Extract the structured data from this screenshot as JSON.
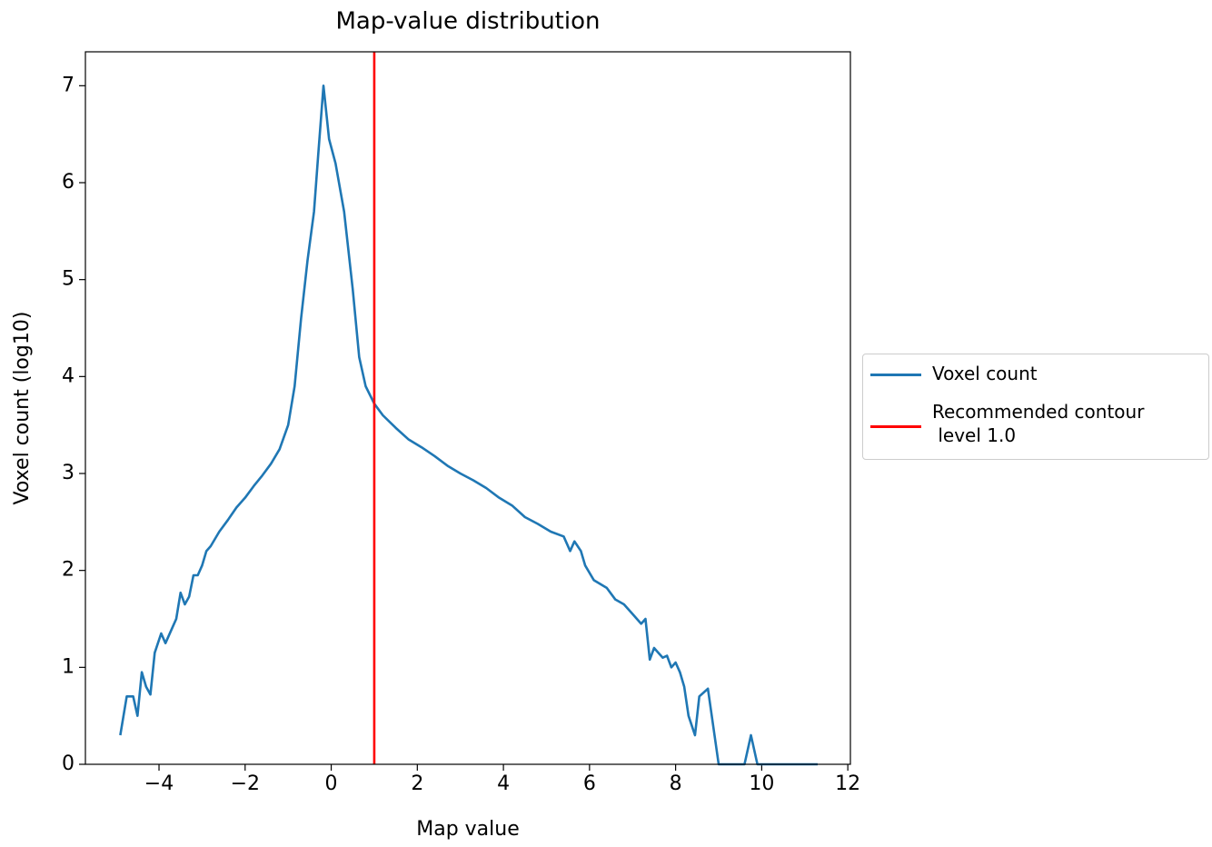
{
  "chart_data": {
    "type": "line",
    "title": "Map-value distribution",
    "xlabel": "Map value",
    "ylabel": "Voxel count (log10)",
    "series": [
      {
        "name": "Voxel count",
        "color": "#1f77b4",
        "x": [
          -4.9,
          -4.75,
          -4.6,
          -4.5,
          -4.4,
          -4.3,
          -4.2,
          -4.1,
          -3.95,
          -3.85,
          -3.7,
          -3.6,
          -3.5,
          -3.4,
          -3.3,
          -3.2,
          -3.1,
          -3.0,
          -2.9,
          -2.8,
          -2.6,
          -2.4,
          -2.2,
          -2.0,
          -1.8,
          -1.6,
          -1.4,
          -1.2,
          -1.0,
          -0.85,
          -0.7,
          -0.55,
          -0.4,
          -0.3,
          -0.18,
          -0.05,
          0.1,
          0.3,
          0.5,
          0.65,
          0.8,
          1.0,
          1.2,
          1.5,
          1.8,
          2.1,
          2.4,
          2.7,
          3.0,
          3.3,
          3.6,
          3.9,
          4.2,
          4.5,
          4.8,
          5.1,
          5.4,
          5.55,
          5.65,
          5.8,
          5.9,
          6.1,
          6.4,
          6.6,
          6.8,
          7.0,
          7.2,
          7.3,
          7.4,
          7.5,
          7.6,
          7.7,
          7.8,
          7.9,
          8.0,
          8.1,
          8.2,
          8.3,
          8.45,
          8.55,
          8.75,
          9.0,
          9.6,
          9.75,
          9.9,
          11.3
        ],
        "values": [
          0.3,
          0.7,
          0.7,
          0.5,
          0.95,
          0.8,
          0.72,
          1.15,
          1.35,
          1.25,
          1.4,
          1.5,
          1.77,
          1.65,
          1.73,
          1.95,
          1.95,
          2.05,
          2.2,
          2.25,
          2.4,
          2.52,
          2.65,
          2.75,
          2.87,
          2.98,
          3.1,
          3.25,
          3.5,
          3.9,
          4.6,
          5.2,
          5.7,
          6.3,
          7.0,
          6.45,
          6.2,
          5.7,
          4.9,
          4.2,
          3.9,
          3.72,
          3.6,
          3.47,
          3.35,
          3.27,
          3.18,
          3.08,
          3.0,
          2.93,
          2.85,
          2.75,
          2.67,
          2.55,
          2.48,
          2.4,
          2.35,
          2.2,
          2.3,
          2.2,
          2.05,
          1.9,
          1.82,
          1.7,
          1.65,
          1.55,
          1.45,
          1.5,
          1.08,
          1.2,
          1.15,
          1.1,
          1.12,
          1.0,
          1.05,
          0.95,
          0.8,
          0.5,
          0.3,
          0.7,
          0.78,
          0.0,
          0.0,
          0.3,
          0.0,
          0.0
        ]
      }
    ],
    "vline": {
      "name": "Recommended contour\n level 1.0",
      "color": "#ff0000",
      "x": 1.0
    },
    "xlim": [
      -5.71,
      12.06
    ],
    "ylim": [
      0,
      7.35
    ],
    "xticks": [
      {
        "value": -4,
        "label": "−4"
      },
      {
        "value": -2,
        "label": "−2"
      },
      0,
      2,
      4,
      6,
      8,
      10,
      12
    ],
    "yticks": [
      0,
      1,
      2,
      3,
      4,
      5,
      6,
      7
    ],
    "legend": "right"
  }
}
